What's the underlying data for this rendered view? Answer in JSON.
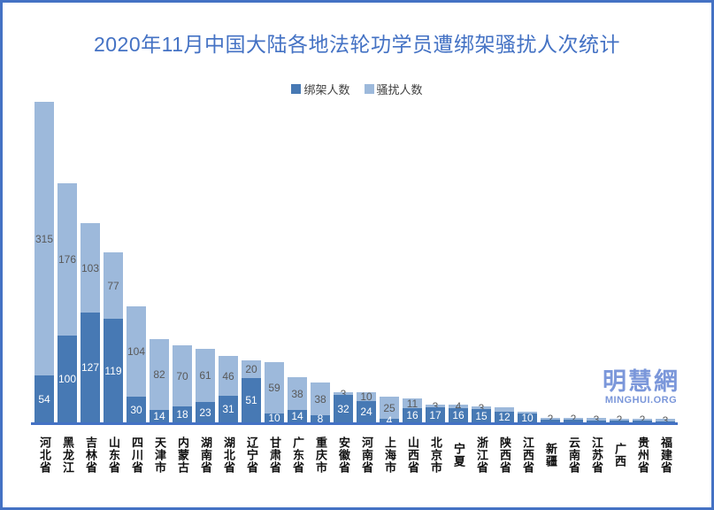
{
  "title": "2020年11月中国大陆各地法轮功学员遭绑架骚扰人次统计",
  "legend": [
    {
      "label": "绑架人数",
      "color": "#4779b4"
    },
    {
      "label": "骚扰人数",
      "color": "#9db9db"
    }
  ],
  "watermark": {
    "cn": "明慧網",
    "en": "MINGHUI.ORG"
  },
  "colors": {
    "kidnapped_bar": "#4779b4",
    "harassed_bar": "#9db9db",
    "axis_line": "#4472c4",
    "title_text": "#4472c4",
    "light_label_text": "#595959",
    "dark_label_text": "#ffffff"
  },
  "chart_data": {
    "type": "bar",
    "stacked": true,
    "title": "2020年11月中国大陆各地法轮功学员遭绑架骚扰人次统计",
    "legend_position": "top",
    "grid": false,
    "ylim": [
      0,
      375
    ],
    "categories": [
      "河北省",
      "黑龙江",
      "吉林省",
      "山东省",
      "四川省",
      "天津市",
      "内蒙古",
      "湖南省",
      "湖北省",
      "辽宁省",
      "甘肃省",
      "广东省",
      "重庆市",
      "安徽省",
      "河南省",
      "上海市",
      "山西省",
      "北京市",
      "宁夏",
      "浙江省",
      "陕西省",
      "江西省",
      "新疆",
      "云南省",
      "江苏省",
      "广西",
      "贵州省",
      "福建省"
    ],
    "series": [
      {
        "name": "绑架人数",
        "color": "#4779b4",
        "values": [
          54,
          100,
          127,
          119,
          30,
          14,
          18,
          23,
          31,
          51,
          10,
          14,
          8,
          32,
          24,
          4,
          16,
          17,
          16,
          15,
          12,
          10,
          3,
          3,
          2,
          2,
          2,
          1
        ],
        "labels": [
          "54",
          "100",
          "127",
          "119",
          "30",
          "14",
          "18",
          "23",
          "31",
          "51",
          "10",
          "14",
          "8",
          "32",
          "24",
          "4",
          "16",
          "17",
          "16",
          "15",
          "12",
          "10",
          "",
          "",
          "",
          "",
          "",
          ""
        ]
      },
      {
        "name": "骚扰人数",
        "color": "#9db9db",
        "values": [
          315,
          176,
          103,
          77,
          104,
          82,
          70,
          61,
          46,
          20,
          59,
          38,
          38,
          3,
          10,
          25,
          11,
          3,
          4,
          3,
          5,
          2,
          2,
          2,
          3,
          2,
          2,
          3
        ],
        "labels": [
          "315",
          "176",
          "103",
          "77",
          "104",
          "82",
          "70",
          "61",
          "46",
          "20",
          "59",
          "38",
          "38",
          "3",
          "10",
          "25",
          "11",
          "3",
          "4",
          "3",
          "",
          "",
          "2",
          "2",
          "3",
          "2",
          "2",
          "3"
        ]
      }
    ]
  }
}
